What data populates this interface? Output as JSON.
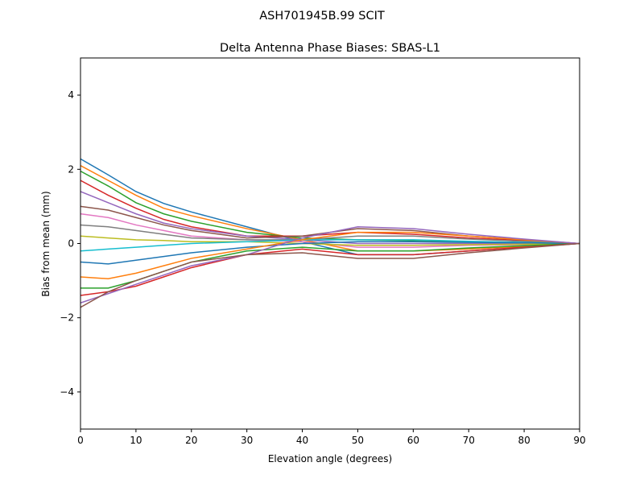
{
  "suptitle": "ASH701945B.99   SCIT",
  "chart_data": {
    "type": "line",
    "title": "Delta Antenna Phase Biases: SBAS-L1",
    "xlabel": "Elevation angle (degrees)",
    "ylabel": "Bias from mean (mm)",
    "xlim": [
      0,
      90
    ],
    "ylim": [
      -5,
      5
    ],
    "xticks": [
      "0",
      "10",
      "20",
      "30",
      "40",
      "50",
      "60",
      "70",
      "80",
      "90"
    ],
    "yticks": [
      "−4",
      "−2",
      "0",
      "2",
      "4"
    ],
    "ytick_values": [
      -4,
      -2,
      0,
      2,
      4
    ],
    "xtick_values": [
      0,
      10,
      20,
      30,
      40,
      50,
      60,
      70,
      80,
      90
    ],
    "grid": false,
    "legend": "none",
    "x": [
      0,
      5,
      10,
      15,
      20,
      30,
      40,
      50,
      60,
      70,
      80,
      90
    ],
    "colors": [
      "#1f77b4",
      "#ff7f0e",
      "#2ca02c",
      "#d62728",
      "#9467bd",
      "#8c564b",
      "#e377c2",
      "#7f7f7f",
      "#bcbd22",
      "#17becf"
    ],
    "series": [
      {
        "values": [
          2.28,
          1.85,
          1.4,
          1.08,
          0.85,
          0.45,
          0.05,
          -0.3,
          -0.3,
          -0.2,
          -0.1,
          0
        ]
      },
      {
        "values": [
          2.1,
          1.7,
          1.3,
          0.95,
          0.75,
          0.4,
          0.1,
          -0.2,
          -0.2,
          -0.15,
          -0.08,
          0
        ]
      },
      {
        "values": [
          1.95,
          1.55,
          1.1,
          0.8,
          0.6,
          0.3,
          0.15,
          0.1,
          0.08,
          0.05,
          0.03,
          0
        ]
      },
      {
        "values": [
          1.7,
          1.3,
          0.95,
          0.65,
          0.45,
          0.2,
          0.2,
          0.3,
          0.25,
          0.15,
          0.08,
          0
        ]
      },
      {
        "values": [
          1.4,
          1.1,
          0.8,
          0.55,
          0.4,
          0.2,
          0.1,
          0.0,
          0.0,
          0.0,
          0.0,
          0
        ]
      },
      {
        "values": [
          1.0,
          0.9,
          0.7,
          0.5,
          0.35,
          0.15,
          0.2,
          0.4,
          0.35,
          0.2,
          0.1,
          0
        ]
      },
      {
        "values": [
          0.8,
          0.7,
          0.5,
          0.35,
          0.2,
          0.1,
          0.05,
          -0.1,
          -0.1,
          -0.05,
          -0.03,
          0
        ]
      },
      {
        "values": [
          0.5,
          0.45,
          0.35,
          0.25,
          0.15,
          0.1,
          0.1,
          0.2,
          0.2,
          0.12,
          0.06,
          0
        ]
      },
      {
        "values": [
          0.2,
          0.15,
          0.1,
          0.08,
          0.05,
          0.05,
          0.0,
          -0.05,
          -0.05,
          -0.03,
          -0.02,
          0
        ]
      },
      {
        "values": [
          -0.2,
          -0.15,
          -0.1,
          -0.05,
          0.0,
          0.05,
          0.1,
          0.1,
          0.1,
          0.06,
          0.03,
          0
        ]
      },
      {
        "values": [
          -0.5,
          -0.55,
          -0.45,
          -0.35,
          -0.25,
          -0.1,
          0.0,
          0.05,
          0.05,
          0.03,
          0.02,
          0
        ]
      },
      {
        "values": [
          -0.9,
          -0.95,
          -0.8,
          -0.6,
          -0.4,
          -0.15,
          0.1,
          0.3,
          0.3,
          0.2,
          0.1,
          0
        ]
      },
      {
        "values": [
          -1.2,
          -1.2,
          -1.0,
          -0.75,
          -0.5,
          -0.2,
          -0.1,
          -0.2,
          -0.2,
          -0.12,
          -0.06,
          0
        ]
      },
      {
        "values": [
          -1.4,
          -1.3,
          -1.15,
          -0.9,
          -0.65,
          -0.3,
          -0.15,
          -0.3,
          -0.3,
          -0.2,
          -0.1,
          0
        ]
      },
      {
        "values": [
          -1.6,
          -1.35,
          -1.1,
          -0.85,
          -0.6,
          -0.3,
          0.15,
          0.45,
          0.4,
          0.25,
          0.12,
          0
        ]
      },
      {
        "values": [
          -1.72,
          -1.3,
          -1.0,
          -0.75,
          -0.5,
          -0.3,
          -0.25,
          -0.4,
          -0.4,
          -0.25,
          -0.12,
          0
        ]
      }
    ]
  }
}
